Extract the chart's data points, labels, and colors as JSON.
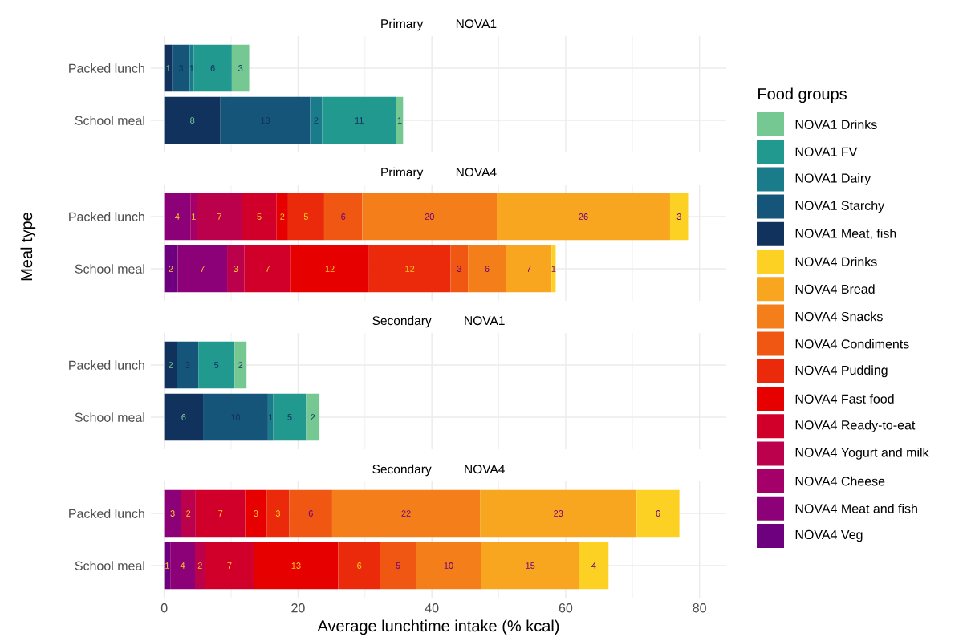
{
  "chart_data": [
    {
      "type": "bar",
      "orientation": "horizontal",
      "stacked": true,
      "title": "Primary",
      "subtitle": "NOVA1",
      "categories": [
        "Packed lunch",
        "School meal"
      ],
      "xlim": [
        -2,
        84
      ],
      "xticks": [
        0,
        20,
        40,
        60,
        80
      ],
      "grid": true,
      "tick_labels": "y",
      "legend": "right",
      "legend_title": "Food groups",
      "series": [
        {
          "name": "NOVA1 Meat, fish",
          "color": "#12325e",
          "values": [
            1.2,
            8.4
          ],
          "value_labels": [
            "1",
            "8"
          ]
        },
        {
          "name": "NOVA1 Starchy",
          "color": "#15557a",
          "values": [
            2.6,
            13.4
          ],
          "value_labels": [
            "3",
            "13"
          ]
        },
        {
          "name": "NOVA1 Dairy",
          "color": "#1a7b8b",
          "values": [
            0.6,
            1.8
          ],
          "value_labels": [
            "1",
            "2"
          ]
        },
        {
          "name": "NOVA1 FV",
          "color": "#21998e",
          "values": [
            5.7,
            11.1
          ],
          "value_labels": [
            "6",
            "11"
          ]
        },
        {
          "name": "NOVA1 Drinks",
          "color": "#76c893",
          "values": [
            2.6,
            1.0
          ],
          "value_labels": [
            "3",
            "1"
          ]
        }
      ]
    },
    {
      "type": "bar",
      "orientation": "horizontal",
      "stacked": true,
      "title": "Primary",
      "subtitle": "NOVA4",
      "ylabel": "Meal type",
      "categories": [
        "Packed lunch",
        "School meal"
      ],
      "xlim": [
        -2,
        84
      ],
      "xticks": [
        0,
        20,
        40,
        60,
        80
      ],
      "grid": true,
      "tick_labels": "y",
      "legend": "right",
      "series": [
        {
          "name": "NOVA4 Veg",
          "color": "#6e0080",
          "values": [
            null,
            2.0
          ],
          "value_labels": [
            null,
            "2"
          ]
        },
        {
          "name": "NOVA4 Meat and fish",
          "color": "#8c0078",
          "values": [
            3.9,
            7.4
          ],
          "value_labels": [
            "4",
            "7"
          ]
        },
        {
          "name": "NOVA4 Cheese",
          "color": "#a5006a",
          "values": [
            1.0,
            null
          ],
          "value_labels": [
            "1",
            null
          ]
        },
        {
          "name": "NOVA4 Yogurt and milk",
          "color": "#bb004c",
          "values": [
            6.7,
            2.6
          ],
          "value_labels": [
            "7",
            "3"
          ]
        },
        {
          "name": "NOVA4 Ready-to-eat",
          "color": "#d1002b",
          "values": [
            5.2,
            6.9
          ],
          "value_labels": [
            "5",
            "7"
          ]
        },
        {
          "name": "NOVA4 Fast food",
          "color": "#e60000",
          "values": [
            1.7,
            11.7
          ],
          "value_labels": [
            "2",
            "12"
          ]
        },
        {
          "name": "NOVA4 Pudding",
          "color": "#ea2a0a",
          "values": [
            5.4,
            12.2
          ],
          "value_labels": [
            "5",
            "12"
          ]
        },
        {
          "name": "NOVA4 Condiments",
          "color": "#f05713",
          "values": [
            5.7,
            2.6
          ],
          "value_labels": [
            "6",
            "3"
          ]
        },
        {
          "name": "NOVA4 Snacks",
          "color": "#f47f1a",
          "values": [
            20.1,
            5.7
          ],
          "value_labels": [
            "20",
            "6"
          ]
        },
        {
          "name": "NOVA4 Bread",
          "color": "#f8a620",
          "values": [
            25.9,
            6.8
          ],
          "value_labels": [
            "26",
            "7"
          ]
        },
        {
          "name": "NOVA4 Drinks",
          "color": "#fdd123",
          "values": [
            2.7,
            0.6
          ],
          "value_labels": [
            "3",
            "1"
          ]
        }
      ]
    },
    {
      "type": "bar",
      "orientation": "horizontal",
      "stacked": true,
      "title": "Secondary",
      "subtitle": "NOVA1",
      "categories": [
        "Packed lunch",
        "School meal"
      ],
      "xlim": [
        -2,
        84
      ],
      "xticks": [
        0,
        20,
        40,
        60,
        80
      ],
      "grid": true,
      "tick_labels": "y",
      "series": [
        {
          "color": "#12325e",
          "values": [
            1.9,
            5.8
          ],
          "value_labels": [
            "2",
            "6"
          ]
        },
        {
          "color": "#15557a",
          "values": [
            3.2,
            9.7
          ],
          "value_labels": [
            "3",
            "10"
          ]
        },
        {
          "color": "#1a7b8b",
          "values": [
            null,
            0.8
          ],
          "value_labels": [
            null,
            "1"
          ]
        },
        {
          "color": "#21998e",
          "values": [
            5.4,
            4.9
          ],
          "value_labels": [
            "5",
            "5"
          ]
        },
        {
          "color": "#76c893",
          "values": [
            1.8,
            2.0
          ],
          "value_labels": [
            "2",
            "2"
          ]
        }
      ]
    },
    {
      "type": "bar",
      "orientation": "horizontal",
      "stacked": true,
      "title": "Secondary",
      "subtitle": "NOVA4",
      "xlabel": "Average lunchtime intake (% kcal)",
      "categories": [
        "Packed lunch",
        "School meal"
      ],
      "xlim": [
        -2,
        84
      ],
      "xticks": [
        0,
        20,
        40,
        60,
        80
      ],
      "grid": true,
      "series": [
        {
          "color": "#6e0080",
          "values": [
            null,
            0.9
          ],
          "value_labels": [
            null,
            "1"
          ]
        },
        {
          "color": "#8c0078",
          "values": [
            2.5,
            3.7
          ],
          "value_labels": [
            "3",
            "4"
          ]
        },
        {
          "color": "#a5006a",
          "values": [
            null,
            null
          ],
          "value_labels": [
            null,
            null
          ]
        },
        {
          "color": "#bb004c",
          "values": [
            2.2,
            1.5
          ],
          "value_labels": [
            "2",
            "2"
          ]
        },
        {
          "color": "#d1002b",
          "values": [
            7.4,
            7.3
          ],
          "value_labels": [
            "7",
            "7"
          ]
        },
        {
          "color": "#e60000",
          "values": [
            3.2,
            12.6
          ],
          "value_labels": [
            "3",
            "13"
          ]
        },
        {
          "color": "#ea2a0a",
          "values": [
            3.4,
            6.3
          ],
          "value_labels": [
            "3",
            "6"
          ]
        },
        {
          "color": "#f05713",
          "values": [
            6.4,
            5.3
          ],
          "value_labels": [
            "6",
            "5"
          ]
        },
        {
          "color": "#f47f1a",
          "values": [
            22.1,
            9.8
          ],
          "value_labels": [
            "22",
            "10"
          ]
        },
        {
          "color": "#f8a620",
          "values": [
            23.4,
            14.6
          ],
          "value_labels": [
            "23",
            "15"
          ]
        },
        {
          "color": "#fdd123",
          "values": [
            6.4,
            4.4
          ],
          "value_labels": [
            "6",
            "4"
          ]
        }
      ]
    }
  ]
}
